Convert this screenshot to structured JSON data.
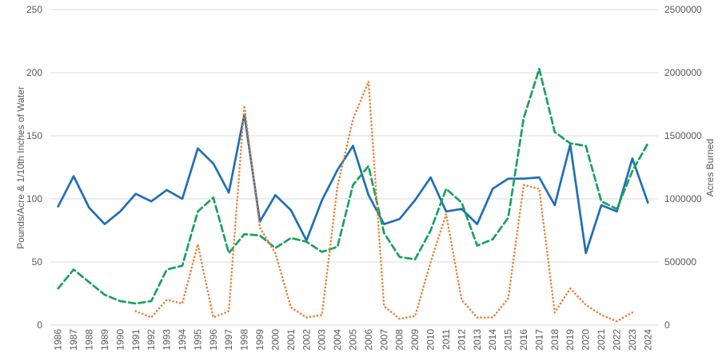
{
  "chart_data": {
    "type": "line",
    "title": "",
    "legend_position": "none",
    "grid": true,
    "x_categories": [
      "1986",
      "1987",
      "1988",
      "1989",
      "1990",
      "1991",
      "1992",
      "1993",
      "1994",
      "1995",
      "1996",
      "1997",
      "1998",
      "1999",
      "2000",
      "2001",
      "2002",
      "2003",
      "2004",
      "2005",
      "2006",
      "2007",
      "2008",
      "2009",
      "2010",
      "2011",
      "2012",
      "2013",
      "2014",
      "2015",
      "2016",
      "2017",
      "2018",
      "2019",
      "2020",
      "2021",
      "2022",
      "2023",
      "2024"
    ],
    "left_axis": {
      "label": "Pounds/Acre & 1/10th Inches of Water",
      "ticks": [
        0,
        50,
        100,
        150,
        200,
        250
      ],
      "range": [
        0,
        250
      ]
    },
    "right_axis": {
      "label": "Acres Burned",
      "ticks": [
        0,
        500000,
        1000000,
        1500000,
        2000000,
        2500000
      ],
      "range": [
        0,
        2500000
      ]
    },
    "series": [
      {
        "name": "blue-solid-line",
        "axis": "left",
        "style": "solid",
        "color": "#1f6fb5",
        "values": [
          94,
          118,
          93,
          80,
          90,
          104,
          98,
          107,
          100,
          140,
          128,
          105,
          167,
          82,
          103,
          91,
          67,
          99,
          123,
          142,
          103,
          80,
          84,
          99,
          117,
          90,
          92,
          80,
          108,
          116,
          116,
          117,
          95,
          143,
          57,
          95,
          90,
          132,
          97
        ]
      },
      {
        "name": "green-dashed-line",
        "axis": "left",
        "style": "dashed",
        "color": "#1aa15e",
        "values": [
          29,
          44,
          34,
          24,
          19,
          17,
          19,
          44,
          47,
          90,
          101,
          57,
          72,
          71,
          61,
          69,
          66,
          58,
          62,
          111,
          126,
          73,
          54,
          52,
          75,
          108,
          97,
          63,
          68,
          85,
          164,
          203,
          153,
          144,
          142,
          98,
          92,
          122,
          144
        ]
      },
      {
        "name": "orange-dotted-line",
        "axis": "right",
        "style": "dotted",
        "color": "#ed7d31",
        "values": [
          null,
          null,
          null,
          null,
          null,
          110000,
          60000,
          200000,
          170000,
          640000,
          60000,
          110000,
          1740000,
          770000,
          570000,
          140000,
          60000,
          80000,
          1100000,
          1630000,
          1930000,
          150000,
          50000,
          70000,
          500000,
          880000,
          200000,
          60000,
          60000,
          210000,
          1110000,
          1080000,
          100000,
          290000,
          160000,
          80000,
          30000,
          100000,
          null
        ]
      }
    ]
  },
  "colors": {
    "background": "#ffffff",
    "gridline": "#d9d9d9",
    "axis_text": "#595959"
  }
}
